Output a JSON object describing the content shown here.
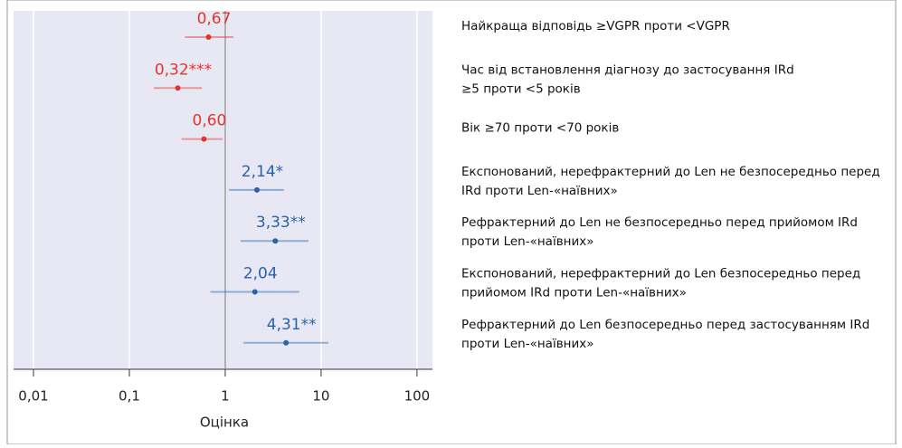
{
  "chart_data": {
    "type": "forest",
    "xlabel": "Оцінка",
    "categories": [
      [
        "Найкраща відповідь ≥VGPR проти <VGPR"
      ],
      [
        "Час від встановлення діагнозу до застосування IRd",
        "≥5 проти <5 років"
      ],
      [
        "Вік ≥70 проти <70 років"
      ],
      [
        "Експонований, нерефрактерний до Len не безпосередньо перед",
        "IRd проти Len-«наївних»"
      ],
      [
        "Рефрактерний до Len не безпосередньо перед прийомом IRd",
        "проти Len-«наївних»"
      ],
      [
        "Експонований, нерефрактерний до Len безпосередньо перед",
        "прийомом IRd проти Len-«наївних»"
      ],
      [
        "Рефрактерний до Len безпосередньо перед застосуванням IRd",
        "проти Len-«наївних»"
      ]
    ],
    "values": [
      0.67,
      0.32,
      0.6,
      2.14,
      3.33,
      2.04,
      4.31
    ],
    "value_labels": [
      "0,67",
      "0,32***",
      "0,60",
      "2,14*",
      "3,33**",
      "2,04",
      "4,31**"
    ],
    "lower": [
      0.38,
      0.18,
      0.35,
      1.09,
      1.45,
      0.7,
      1.55
    ],
    "upper": [
      1.22,
      0.57,
      0.94,
      4.1,
      7.4,
      5.9,
      11.9
    ],
    "colors": [
      "#e2362b",
      "#e2362b",
      "#e2362b",
      "#2863a9",
      "#2863a9",
      "#2863a9",
      "#2863a9"
    ],
    "log_x": true,
    "xlim": [
      0.0062,
      145
    ],
    "xticks": [
      {
        "value": 0.01,
        "label": "0,01"
      },
      {
        "value": 0.1,
        "label": "0,1"
      },
      1,
      10,
      100
    ],
    "reference_line": 1
  }
}
